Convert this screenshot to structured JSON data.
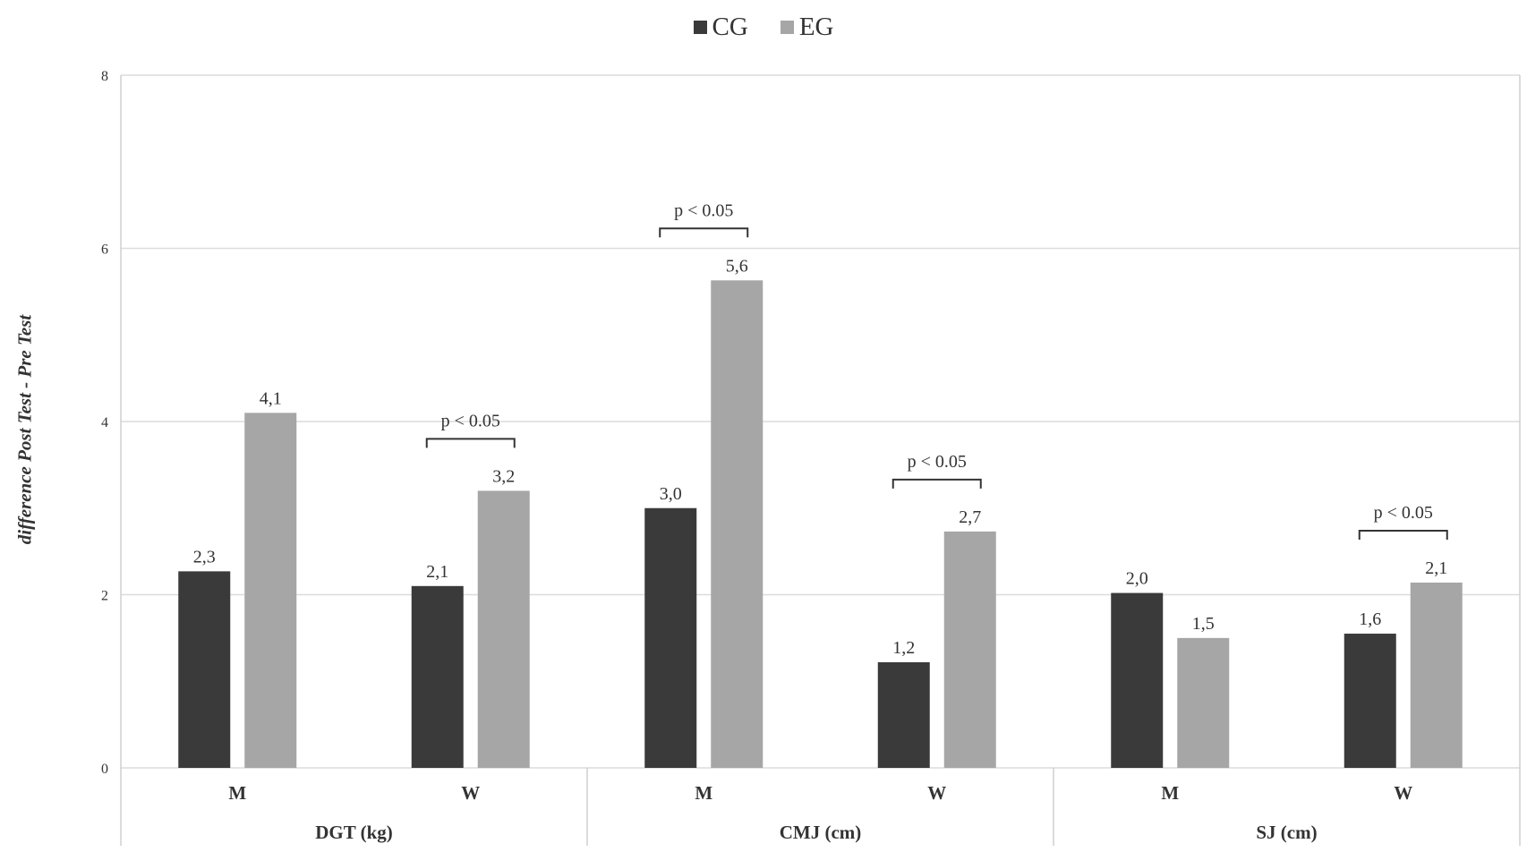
{
  "chart_data": {
    "type": "bar",
    "title": "",
    "ylabel": "difference Post Test - Pre Test",
    "ylim": [
      0,
      8
    ],
    "yticks": [
      "0",
      "2",
      "4",
      "6",
      "8"
    ],
    "groups": [
      {
        "label": "DGT (kg)",
        "categories": [
          "M",
          "W"
        ]
      },
      {
        "label": "CMJ (cm)",
        "categories": [
          "M",
          "W"
        ]
      },
      {
        "label": "SJ (cm)",
        "categories": [
          "M",
          "W"
        ]
      }
    ],
    "categories": [
      "M",
      "W",
      "M",
      "W",
      "M",
      "W"
    ],
    "series": [
      {
        "name": "CG",
        "color": "#3a3a3a",
        "values": [
          2.27,
          2.1,
          3.0,
          1.22,
          2.02,
          1.55
        ],
        "labels": [
          "2,3",
          "2,1",
          "3,0",
          "1,2",
          "2,0",
          "1,6"
        ]
      },
      {
        "name": "EG",
        "color": "#a6a6a6",
        "values": [
          4.1,
          3.2,
          5.63,
          2.73,
          1.5,
          2.14
        ],
        "labels": [
          "4,1",
          "3,2",
          "5,6",
          "2,7",
          "1,5",
          "2,1"
        ]
      }
    ],
    "annotations": [
      {
        "category_index": 1,
        "text": "p < 0.05"
      },
      {
        "category_index": 2,
        "text": "p < 0.05"
      },
      {
        "category_index": 3,
        "text": "p < 0.05"
      },
      {
        "category_index": 5,
        "text": "p < 0.05"
      }
    ],
    "legend_position": "top-center",
    "grid": true
  }
}
